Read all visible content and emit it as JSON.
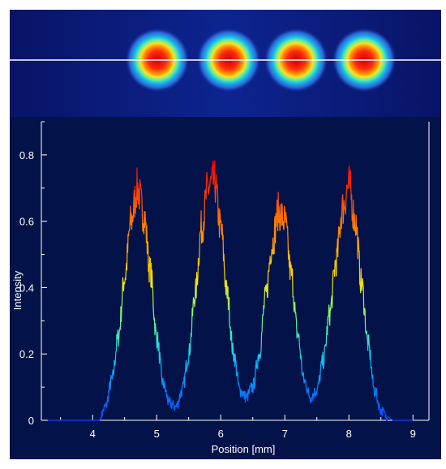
{
  "chart_data": {
    "type": "line",
    "title": "",
    "xlabel": "Position [mm]",
    "ylabel": "Intensity",
    "xlim": [
      3.2,
      9.25
    ],
    "ylim": [
      0,
      0.9
    ],
    "x_ticks": [
      4,
      5,
      6,
      7,
      8,
      9
    ],
    "y_ticks": [
      0,
      0.2,
      0.4,
      0.6,
      0.8
    ],
    "x_tick_labels": [
      "4",
      "5",
      "6",
      "7",
      "8",
      "9"
    ],
    "y_tick_labels": [
      "0",
      "0.2",
      "0.4",
      "0.6",
      "0.8"
    ],
    "grid": false,
    "legend": "none",
    "line_color_scale": "jet (blue at 0 to red at max intensity)",
    "series": [
      {
        "x": [
          3.3,
          4.1,
          4.2,
          4.3,
          4.4,
          4.5,
          4.6,
          4.7,
          4.8,
          4.9,
          5.0,
          5.1,
          5.2,
          5.3,
          5.4,
          5.5,
          5.6,
          5.7,
          5.8,
          5.9,
          6.0,
          6.1,
          6.2,
          6.3,
          6.4,
          6.5,
          6.6,
          6.7,
          6.8,
          6.9,
          7.0,
          7.1,
          7.2,
          7.3,
          7.4,
          7.5,
          7.6,
          7.7,
          7.8,
          7.9,
          8.0,
          8.1,
          8.2,
          8.3,
          8.4,
          8.5,
          8.6,
          8.7,
          9.0
        ],
        "y": [
          0.0,
          0.0,
          0.04,
          0.12,
          0.25,
          0.43,
          0.6,
          0.7,
          0.62,
          0.45,
          0.25,
          0.11,
          0.05,
          0.04,
          0.09,
          0.2,
          0.38,
          0.58,
          0.7,
          0.72,
          0.58,
          0.38,
          0.2,
          0.09,
          0.07,
          0.1,
          0.2,
          0.37,
          0.53,
          0.63,
          0.6,
          0.44,
          0.26,
          0.12,
          0.07,
          0.09,
          0.18,
          0.32,
          0.48,
          0.64,
          0.71,
          0.6,
          0.41,
          0.23,
          0.09,
          0.03,
          0.01,
          0.0,
          0.0
        ]
      }
    ],
    "annotations": []
  },
  "beam_image": {
    "description_colors": {
      "background": "#0a1a7a",
      "halo": "#2a6bd0",
      "ring": "#22d8c8",
      "core": "#e01010"
    },
    "spot_count": 4,
    "has_horizontal_line": true
  },
  "colors": {
    "plot_background": "#03134a",
    "axis": "#ffffff",
    "beam_background": "#0b1f82"
  }
}
